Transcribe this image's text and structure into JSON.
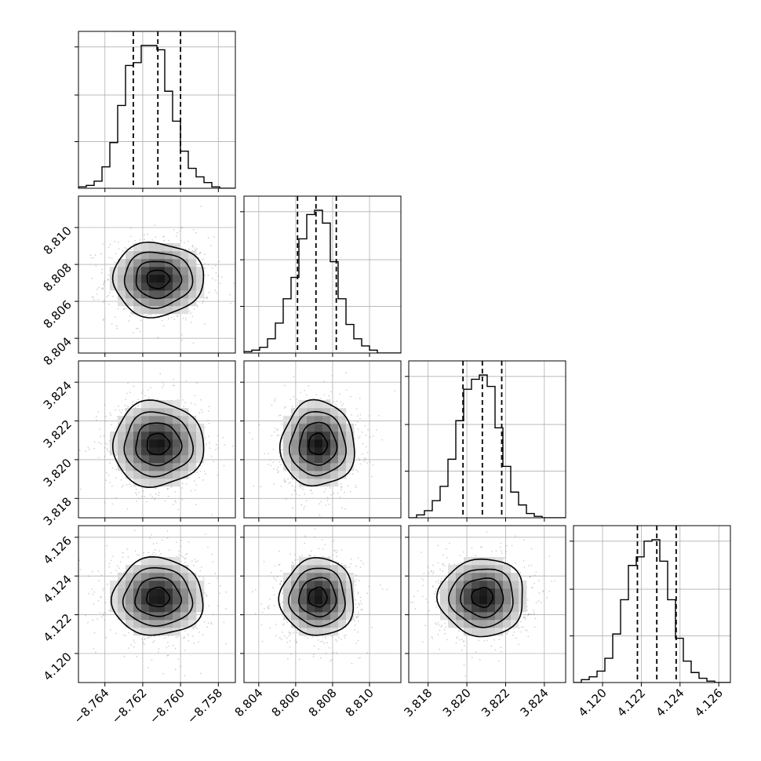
{
  "chart_data": {
    "type": "corner",
    "parameters": [
      {
        "range": [
          -8.7654,
          -8.7571
        ],
        "ticks": [
          -8.764,
          -8.762,
          -8.76,
          -8.758
        ],
        "tick_labels": [
          "−8.764",
          "−8.762",
          "−8.760",
          "−8.758"
        ],
        "quantiles": [
          -8.7625,
          -8.7612,
          -8.76
        ],
        "hist_x": [
          -8.7653,
          -8.7649,
          -8.7645,
          -8.7641,
          -8.7637,
          -8.7633,
          -8.7628,
          -8.7624,
          -8.762,
          -8.7616,
          -8.7612,
          -8.7608,
          -8.7604,
          -8.7599,
          -8.7595,
          -8.7591,
          -8.7587,
          -8.7583,
          -8.7579,
          -8.7575
        ],
        "hist_counts": [
          0.01,
          0.02,
          0.05,
          0.15,
          0.32,
          0.58,
          0.86,
          0.88,
          1.0,
          1.0,
          0.97,
          0.68,
          0.47,
          0.26,
          0.14,
          0.08,
          0.04,
          0.01,
          0.0,
          0.0
        ]
      },
      {
        "range": [
          8.8032,
          8.8117
        ],
        "ticks": [
          8.804,
          8.806,
          8.808,
          8.81
        ],
        "tick_labels": [
          "8.804",
          "8.806",
          "8.808",
          "8.810"
        ],
        "quantiles": [
          8.8061,
          8.8071,
          8.8082
        ],
        "hist_x": [
          8.8034,
          8.8038,
          8.8042,
          8.8047,
          8.8051,
          8.8055,
          8.8059,
          8.8064,
          8.8068,
          8.8072,
          8.8076,
          8.8081,
          8.8085,
          8.8089,
          8.8093,
          8.8098,
          8.8102,
          8.8106,
          8.811,
          8.8115
        ],
        "hist_counts": [
          0.01,
          0.02,
          0.04,
          0.1,
          0.21,
          0.38,
          0.53,
          0.8,
          0.97,
          1.0,
          0.91,
          0.64,
          0.38,
          0.2,
          0.1,
          0.05,
          0.02,
          0.0,
          0.0,
          0.0
        ]
      },
      {
        "range": [
          3.817,
          3.8251
        ],
        "ticks": [
          3.818,
          3.82,
          3.822,
          3.824
        ],
        "tick_labels": [
          "3.818",
          "3.820",
          "3.822",
          "3.824"
        ],
        "quantiles": [
          3.8198,
          3.8208,
          3.8218
        ],
        "hist_x": [
          3.8172,
          3.8176,
          3.818,
          3.8184,
          3.8188,
          3.8192,
          3.8196,
          3.82,
          3.8204,
          3.8208,
          3.8212,
          3.8216,
          3.822,
          3.8224,
          3.8228,
          3.8232,
          3.8236,
          3.824,
          3.8244,
          3.8248
        ],
        "hist_counts": [
          0.0,
          0.02,
          0.05,
          0.12,
          0.22,
          0.41,
          0.68,
          0.9,
          0.97,
          1.0,
          0.92,
          0.63,
          0.36,
          0.18,
          0.09,
          0.03,
          0.01,
          0.0,
          0.0,
          0.0
        ]
      },
      {
        "range": [
          4.1185,
          4.1266
        ],
        "ticks": [
          4.12,
          4.122,
          4.124,
          4.126
        ],
        "tick_labels": [
          "4.120",
          "4.122",
          "4.124",
          "4.126"
        ],
        "quantiles": [
          4.1218,
          4.1228,
          4.1238
        ],
        "hist_x": [
          4.1187,
          4.1191,
          4.1195,
          4.1199,
          4.1203,
          4.1207,
          4.1211,
          4.1215,
          4.1219,
          4.1223,
          4.1227,
          4.1231,
          4.1235,
          4.1239,
          4.1243,
          4.1247,
          4.1251,
          4.1255,
          4.1259,
          4.1263
        ],
        "hist_counts": [
          0.0,
          0.02,
          0.04,
          0.08,
          0.17,
          0.34,
          0.58,
          0.82,
          0.88,
          0.99,
          1.0,
          0.85,
          0.58,
          0.31,
          0.15,
          0.07,
          0.03,
          0.01,
          0.0,
          0.0
        ]
      }
    ],
    "centers": [
      -8.7612,
      8.8072,
      3.8208,
      4.1229
    ],
    "sigmas": [
      0.0012,
      0.001,
      0.0011,
      0.001
    ],
    "contour_levels": [
      0.5,
      1.0,
      1.5,
      2.0
    ],
    "grid": true,
    "colors": {
      "line": "#000000",
      "grid": "#b0b0b0",
      "scatter": "#7f7f7f"
    }
  }
}
